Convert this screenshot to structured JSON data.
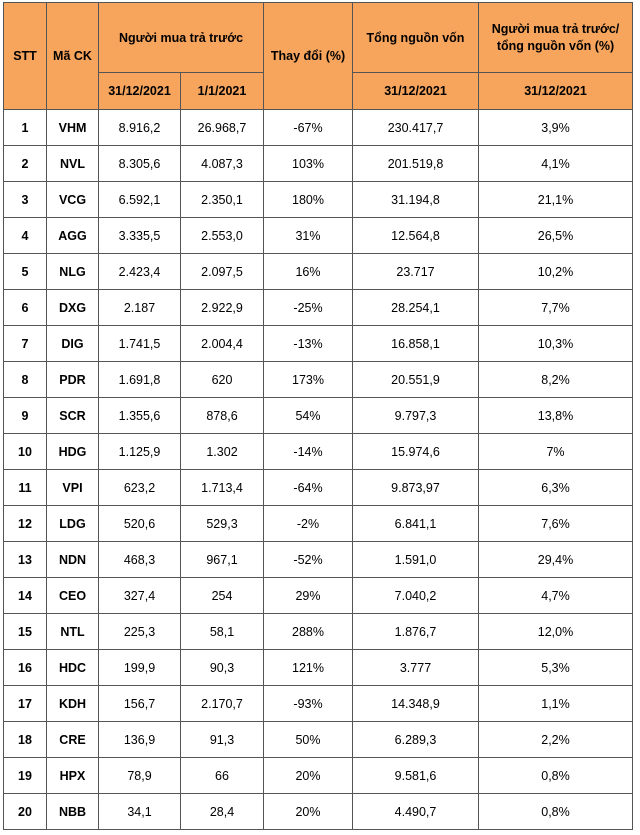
{
  "chart_data": {
    "type": "table",
    "headers": {
      "stt": "STT",
      "code": "Mã CK",
      "advance": "Người mua trả trước",
      "change": "Thay đổi (%)",
      "capital": "Tổng nguồn vốn",
      "ratio": "Người mua trả trước/ tổng nguồn vốn (%)",
      "date_end": "31/12/2021",
      "date_start": "1/1/2021",
      "date_capital": "31/12/2021",
      "date_ratio": "31/12/2021"
    },
    "rows": [
      {
        "stt": "1",
        "code": "VHM",
        "adv_end": "8.916,2",
        "adv_start": "26.968,7",
        "change": "-67%",
        "capital": "230.417,7",
        "ratio": "3,9%"
      },
      {
        "stt": "2",
        "code": "NVL",
        "adv_end": "8.305,6",
        "adv_start": "4.087,3",
        "change": "103%",
        "capital": "201.519,8",
        "ratio": "4,1%"
      },
      {
        "stt": "3",
        "code": "VCG",
        "adv_end": "6.592,1",
        "adv_start": "2.350,1",
        "change": "180%",
        "capital": "31.194,8",
        "ratio": "21,1%"
      },
      {
        "stt": "4",
        "code": "AGG",
        "adv_end": "3.335,5",
        "adv_start": "2.553,0",
        "change": "31%",
        "capital": "12.564,8",
        "ratio": "26,5%"
      },
      {
        "stt": "5",
        "code": "NLG",
        "adv_end": "2.423,4",
        "adv_start": "2.097,5",
        "change": "16%",
        "capital": "23.717",
        "ratio": "10,2%"
      },
      {
        "stt": "6",
        "code": "DXG",
        "adv_end": "2.187",
        "adv_start": "2.922,9",
        "change": "-25%",
        "capital": "28.254,1",
        "ratio": "7,7%"
      },
      {
        "stt": "7",
        "code": "DIG",
        "adv_end": "1.741,5",
        "adv_start": "2.004,4",
        "change": "-13%",
        "capital": "16.858,1",
        "ratio": "10,3%"
      },
      {
        "stt": "8",
        "code": "PDR",
        "adv_end": "1.691,8",
        "adv_start": "620",
        "change": "173%",
        "capital": "20.551,9",
        "ratio": "8,2%"
      },
      {
        "stt": "9",
        "code": "SCR",
        "adv_end": "1.355,6",
        "adv_start": "878,6",
        "change": "54%",
        "capital": "9.797,3",
        "ratio": "13,8%"
      },
      {
        "stt": "10",
        "code": "HDG",
        "adv_end": "1.125,9",
        "adv_start": "1.302",
        "change": "-14%",
        "capital": "15.974,6",
        "ratio": "7%"
      },
      {
        "stt": "11",
        "code": "VPI",
        "adv_end": "623,2",
        "adv_start": "1.713,4",
        "change": "-64%",
        "capital": "9.873,97",
        "ratio": "6,3%"
      },
      {
        "stt": "12",
        "code": "LDG",
        "adv_end": "520,6",
        "adv_start": "529,3",
        "change": "-2%",
        "capital": "6.841,1",
        "ratio": "7,6%"
      },
      {
        "stt": "13",
        "code": "NDN",
        "adv_end": "468,3",
        "adv_start": "967,1",
        "change": "-52%",
        "capital": "1.591,0",
        "ratio": "29,4%"
      },
      {
        "stt": "14",
        "code": "CEO",
        "adv_end": "327,4",
        "adv_start": "254",
        "change": "29%",
        "capital": "7.040,2",
        "ratio": "4,7%"
      },
      {
        "stt": "15",
        "code": "NTL",
        "adv_end": "225,3",
        "adv_start": "58,1",
        "change": "288%",
        "capital": "1.876,7",
        "ratio": "12,0%"
      },
      {
        "stt": "16",
        "code": "HDC",
        "adv_end": "199,9",
        "adv_start": "90,3",
        "change": "121%",
        "capital": "3.777",
        "ratio": "5,3%"
      },
      {
        "stt": "17",
        "code": "KDH",
        "adv_end": "156,7",
        "adv_start": "2.170,7",
        "change": "-93%",
        "capital": "14.348,9",
        "ratio": "1,1%"
      },
      {
        "stt": "18",
        "code": "CRE",
        "adv_end": "136,9",
        "adv_start": "91,3",
        "change": "50%",
        "capital": "6.289,3",
        "ratio": "2,2%"
      },
      {
        "stt": "19",
        "code": "HPX",
        "adv_end": "78,9",
        "adv_start": "66",
        "change": "20%",
        "capital": "9.581,6",
        "ratio": "0,8%"
      },
      {
        "stt": "20",
        "code": "NBB",
        "adv_end": "34,1",
        "adv_start": "28,4",
        "change": "20%",
        "capital": "4.490,7",
        "ratio": "0,8%"
      }
    ],
    "colors": {
      "header_bg": "#f7a45c",
      "border": "#555555",
      "body_bg": "#ffffff"
    }
  }
}
